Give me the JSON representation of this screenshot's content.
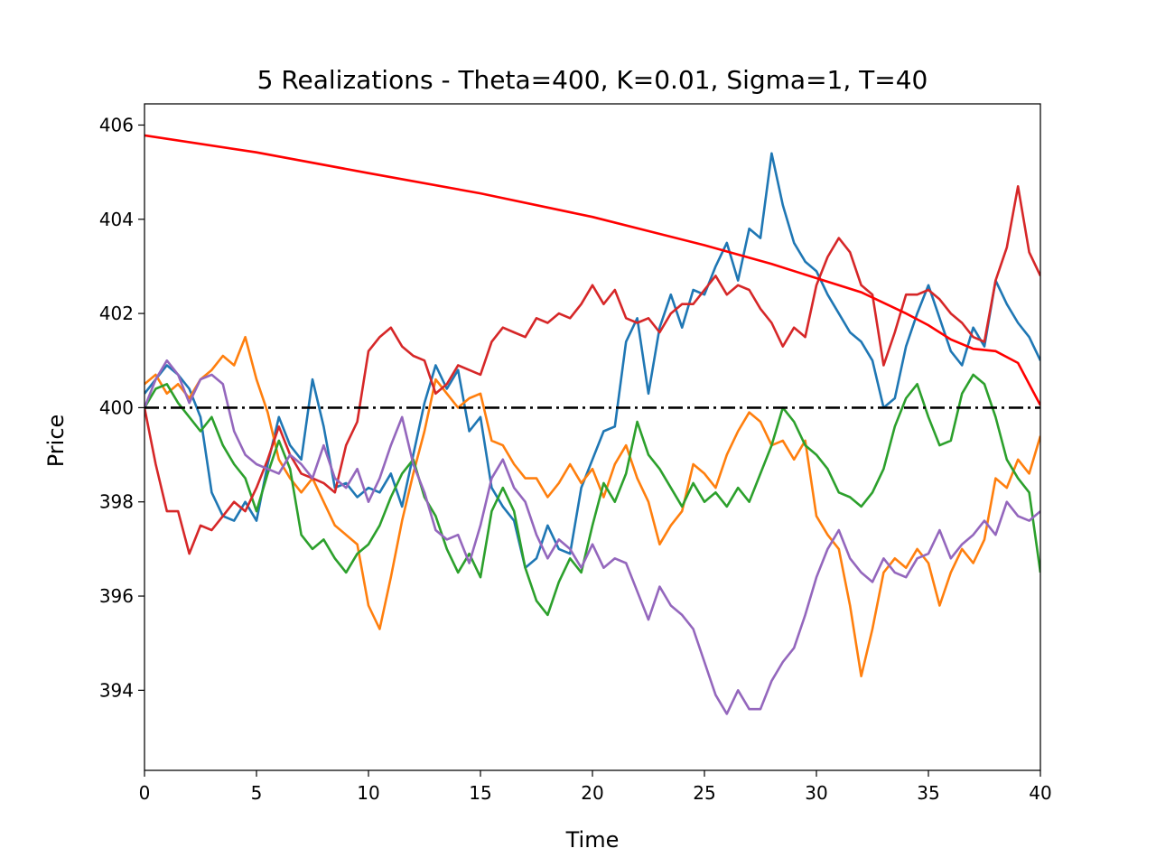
{
  "chart_data": {
    "type": "line",
    "title": "5 Realizations - Theta=400, K=0.01, Sigma=1, T=40",
    "xlabel": "Time",
    "ylabel": "Price",
    "xlim": [
      0,
      40
    ],
    "ylim": [
      392.3,
      406.45
    ],
    "xticks": [
      0,
      5,
      10,
      15,
      20,
      25,
      30,
      35,
      40
    ],
    "yticks": [
      394,
      396,
      398,
      400,
      402,
      404,
      406
    ],
    "grid": false,
    "legend": "none",
    "mean_line": {
      "y": 400,
      "color": "#000000",
      "style": "dash-dot"
    },
    "boundary": {
      "color": "#ff0000",
      "x": [
        0,
        5,
        10,
        15,
        20,
        25,
        28,
        30,
        32,
        34,
        35,
        36,
        37,
        38,
        39,
        40
      ],
      "y": [
        405.78,
        405.42,
        404.98,
        404.55,
        404.05,
        403.45,
        403.05,
        402.75,
        402.45,
        402.0,
        401.75,
        401.45,
        401.25,
        401.2,
        400.95,
        400.05
      ]
    },
    "series": [
      {
        "color": "#1f77b4",
        "x": [
          0,
          0.5,
          1,
          1.5,
          2,
          2.5,
          3,
          3.5,
          4,
          4.5,
          5,
          5.5,
          6,
          6.5,
          7,
          7.5,
          8,
          8.5,
          9,
          9.5,
          10,
          10.5,
          11,
          11.5,
          12,
          12.5,
          13,
          13.5,
          14,
          14.5,
          15,
          15.5,
          16,
          16.5,
          17,
          17.5,
          18,
          18.5,
          19,
          19.5,
          20,
          20.5,
          21,
          21.5,
          22,
          22.5,
          23,
          23.5,
          24,
          24.5,
          25,
          25.5,
          26,
          26.5,
          27,
          27.5,
          28,
          28.5,
          29,
          29.5,
          30,
          30.5,
          31,
          31.5,
          32,
          32.5,
          33,
          33.5,
          34,
          34.5,
          35,
          35.5,
          36,
          36.5,
          37,
          37.5,
          38,
          38.5,
          39,
          39.5,
          40
        ],
        "y": [
          400.3,
          400.6,
          400.9,
          400.7,
          400.4,
          399.8,
          398.2,
          397.7,
          397.6,
          398.0,
          397.6,
          398.8,
          399.8,
          399.2,
          398.9,
          400.6,
          399.6,
          398.3,
          398.4,
          398.1,
          398.3,
          398.2,
          398.6,
          397.9,
          399.0,
          400.1,
          400.9,
          400.4,
          400.8,
          399.5,
          399.8,
          398.3,
          397.9,
          397.6,
          396.6,
          396.8,
          397.5,
          397.0,
          396.9,
          398.3,
          398.9,
          399.5,
          399.6,
          401.4,
          401.9,
          400.3,
          401.7,
          402.4,
          401.7,
          402.5,
          402.4,
          403.0,
          403.5,
          402.7,
          403.8,
          403.6,
          405.4,
          404.3,
          403.5,
          403.1,
          402.9,
          402.4,
          402.0,
          401.6,
          401.4,
          401.0,
          400.0,
          400.2,
          401.3,
          402.0,
          402.6,
          401.9,
          401.2,
          400.9,
          401.7,
          401.3,
          402.7,
          402.2,
          401.8,
          401.5,
          401.0
        ]
      },
      {
        "color": "#ff7f0e",
        "x": [
          0,
          0.5,
          1,
          1.5,
          2,
          2.5,
          3,
          3.5,
          4,
          4.5,
          5,
          5.5,
          6,
          6.5,
          7,
          7.5,
          8,
          8.5,
          9,
          9.5,
          10,
          10.5,
          11,
          11.5,
          12,
          12.5,
          13,
          13.5,
          14,
          14.5,
          15,
          15.5,
          16,
          16.5,
          17,
          17.5,
          18,
          18.5,
          19,
          19.5,
          20,
          20.5,
          21,
          21.5,
          22,
          22.5,
          23,
          23.5,
          24,
          24.5,
          25,
          25.5,
          26,
          26.5,
          27,
          27.5,
          28,
          28.5,
          29,
          29.5,
          30,
          30.5,
          31,
          31.5,
          32,
          32.5,
          33,
          33.5,
          34,
          34.5,
          35,
          35.5,
          36,
          36.5,
          37,
          37.5,
          38,
          38.5,
          39,
          39.5,
          40
        ],
        "y": [
          400.5,
          400.7,
          400.3,
          400.5,
          400.2,
          400.6,
          400.8,
          401.1,
          400.9,
          401.5,
          400.6,
          399.9,
          398.9,
          398.5,
          398.2,
          398.5,
          398.0,
          397.5,
          397.3,
          397.1,
          395.8,
          395.3,
          396.4,
          397.6,
          398.6,
          399.5,
          400.6,
          400.3,
          400.0,
          400.2,
          400.3,
          399.3,
          399.2,
          398.8,
          398.5,
          398.5,
          398.1,
          398.4,
          398.8,
          398.4,
          398.7,
          398.1,
          398.8,
          399.2,
          398.5,
          398.0,
          397.1,
          397.5,
          397.8,
          398.8,
          398.6,
          398.3,
          399.0,
          399.5,
          399.9,
          399.7,
          399.2,
          399.3,
          398.9,
          399.3,
          397.7,
          397.3,
          397.0,
          395.8,
          394.3,
          395.3,
          396.5,
          396.8,
          396.6,
          397.0,
          396.7,
          395.8,
          396.5,
          397.0,
          396.7,
          397.2,
          398.5,
          398.3,
          398.9,
          398.6,
          399.4
        ]
      },
      {
        "color": "#2ca02c",
        "x": [
          0,
          0.5,
          1,
          1.5,
          2,
          2.5,
          3,
          3.5,
          4,
          4.5,
          5,
          5.5,
          6,
          6.5,
          7,
          7.5,
          8,
          8.5,
          9,
          9.5,
          10,
          10.5,
          11,
          11.5,
          12,
          12.5,
          13,
          13.5,
          14,
          14.5,
          15,
          15.5,
          16,
          16.5,
          17,
          17.5,
          18,
          18.5,
          19,
          19.5,
          20,
          20.5,
          21,
          21.5,
          22,
          22.5,
          23,
          23.5,
          24,
          24.5,
          25,
          25.5,
          26,
          26.5,
          27,
          27.5,
          28,
          28.5,
          29,
          29.5,
          30,
          30.5,
          31,
          31.5,
          32,
          32.5,
          33,
          33.5,
          34,
          34.5,
          35,
          35.5,
          36,
          36.5,
          37,
          37.5,
          38,
          38.5,
          39,
          39.5,
          40
        ],
        "y": [
          400.0,
          400.4,
          400.5,
          400.1,
          399.8,
          399.5,
          399.8,
          399.2,
          398.8,
          398.5,
          397.8,
          398.6,
          399.3,
          398.7,
          397.3,
          397.0,
          397.2,
          396.8,
          396.5,
          396.9,
          397.1,
          397.5,
          398.1,
          398.6,
          398.9,
          398.1,
          397.7,
          397.0,
          396.5,
          396.9,
          396.4,
          397.8,
          398.3,
          397.8,
          396.6,
          395.9,
          395.6,
          396.3,
          396.8,
          396.5,
          397.5,
          398.4,
          398.0,
          398.6,
          399.7,
          399.0,
          398.7,
          398.3,
          397.9,
          398.4,
          398.0,
          398.2,
          397.9,
          398.3,
          398.0,
          398.6,
          399.2,
          400.0,
          399.7,
          399.2,
          399.0,
          398.7,
          398.2,
          398.1,
          397.9,
          398.2,
          398.7,
          399.6,
          400.2,
          400.5,
          399.8,
          399.2,
          399.3,
          400.3,
          400.7,
          400.5,
          399.8,
          398.9,
          398.5,
          398.2,
          396.5
        ]
      },
      {
        "color": "#d62728",
        "x": [
          0,
          0.5,
          1,
          1.5,
          2,
          2.5,
          3,
          3.5,
          4,
          4.5,
          5,
          5.5,
          6,
          6.5,
          7,
          7.5,
          8,
          8.5,
          9,
          9.5,
          10,
          10.5,
          11,
          11.5,
          12,
          12.5,
          13,
          13.5,
          14,
          14.5,
          15,
          15.5,
          16,
          16.5,
          17,
          17.5,
          18,
          18.5,
          19,
          19.5,
          20,
          20.5,
          21,
          21.5,
          22,
          22.5,
          23,
          23.5,
          24,
          24.5,
          25,
          25.5,
          26,
          26.5,
          27,
          27.5,
          28,
          28.5,
          29,
          29.5,
          30,
          30.5,
          31,
          31.5,
          32,
          32.5,
          33,
          33.5,
          34,
          34.5,
          35,
          35.5,
          36,
          36.5,
          37,
          37.5,
          38,
          38.5,
          39,
          39.5,
          40
        ],
        "y": [
          400.0,
          398.8,
          397.8,
          397.8,
          396.9,
          397.5,
          397.4,
          397.7,
          398.0,
          397.8,
          398.3,
          398.9,
          399.6,
          399.0,
          398.6,
          398.5,
          398.4,
          398.2,
          399.2,
          399.7,
          401.2,
          401.5,
          401.7,
          401.3,
          401.1,
          401.0,
          400.3,
          400.5,
          400.9,
          400.8,
          400.7,
          401.4,
          401.7,
          401.6,
          401.5,
          401.9,
          401.8,
          402.0,
          401.9,
          402.2,
          402.6,
          402.2,
          402.5,
          401.9,
          401.8,
          401.9,
          401.6,
          402.0,
          402.2,
          402.2,
          402.5,
          402.8,
          402.4,
          402.6,
          402.5,
          402.1,
          401.8,
          401.3,
          401.7,
          401.5,
          402.6,
          403.2,
          403.6,
          403.3,
          402.6,
          402.4,
          400.9,
          401.6,
          402.4,
          402.4,
          402.5,
          402.3,
          402.0,
          401.8,
          401.5,
          401.4,
          402.7,
          403.4,
          404.7,
          403.3,
          402.8
        ]
      },
      {
        "color": "#9467bd",
        "x": [
          0,
          0.5,
          1,
          1.5,
          2,
          2.5,
          3,
          3.5,
          4,
          4.5,
          5,
          5.5,
          6,
          6.5,
          7,
          7.5,
          8,
          8.5,
          9,
          9.5,
          10,
          10.5,
          11,
          11.5,
          12,
          12.5,
          13,
          13.5,
          14,
          14.5,
          15,
          15.5,
          16,
          16.5,
          17,
          17.5,
          18,
          18.5,
          19,
          19.5,
          20,
          20.5,
          21,
          21.5,
          22,
          22.5,
          23,
          23.5,
          24,
          24.5,
          25,
          25.5,
          26,
          26.5,
          27,
          27.5,
          28,
          28.5,
          29,
          29.5,
          30,
          30.5,
          31,
          31.5,
          32,
          32.5,
          33,
          33.5,
          34,
          34.5,
          35,
          35.5,
          36,
          36.5,
          37,
          37.5,
          38,
          38.5,
          39,
          39.5,
          40
        ],
        "y": [
          400.0,
          400.6,
          401.0,
          400.7,
          400.1,
          400.6,
          400.7,
          400.5,
          399.5,
          399.0,
          398.8,
          398.7,
          398.6,
          399.0,
          398.8,
          398.5,
          399.2,
          398.5,
          398.3,
          398.7,
          398.0,
          398.5,
          399.2,
          399.8,
          398.8,
          398.2,
          397.4,
          397.2,
          397.3,
          396.7,
          397.5,
          398.5,
          398.9,
          398.3,
          398.0,
          397.3,
          396.8,
          397.2,
          397.0,
          396.6,
          397.1,
          396.6,
          396.8,
          396.7,
          396.1,
          395.5,
          396.2,
          395.8,
          395.6,
          395.3,
          394.6,
          393.9,
          393.5,
          394.0,
          393.6,
          393.6,
          394.2,
          394.6,
          394.9,
          395.6,
          396.4,
          397.0,
          397.4,
          396.8,
          396.5,
          396.3,
          396.8,
          396.5,
          396.4,
          396.8,
          396.9,
          397.4,
          396.8,
          397.1,
          397.3,
          397.6,
          397.3,
          398.0,
          397.7,
          397.6,
          397.8
        ]
      }
    ]
  }
}
